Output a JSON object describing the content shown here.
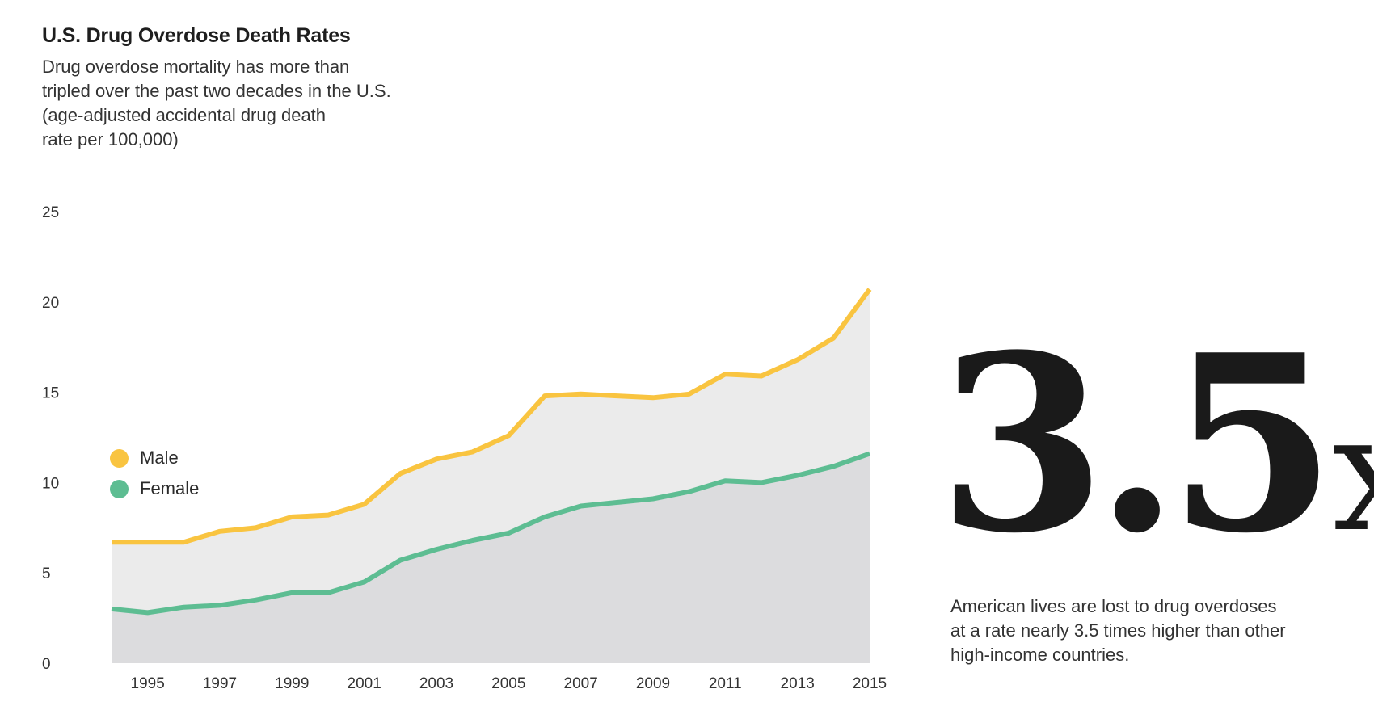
{
  "header": {
    "title": "U.S. Drug Overdose Death Rates",
    "subtitle_lines": [
      "Drug overdose mortality has more than",
      "tripled over the past two decades in the U.S.",
      "(age-adjusted accidental drug death",
      "rate per 100,000)"
    ]
  },
  "callout": {
    "number": "3.5",
    "suffix": "x",
    "note_lines": [
      "American lives are lost to drug overdoses",
      "at a rate nearly 3.5 times higher than other",
      "high-income countries."
    ]
  },
  "colors": {
    "male": "#f9c440",
    "female": "#5dbd92",
    "male_area": "#ebebeb",
    "female_area": "#dcdcde"
  },
  "chart_data": {
    "type": "area",
    "x": [
      1994,
      1995,
      1996,
      1997,
      1998,
      1999,
      2000,
      2001,
      2002,
      2003,
      2004,
      2005,
      2006,
      2007,
      2008,
      2009,
      2010,
      2011,
      2012,
      2013,
      2014,
      2015
    ],
    "x_tick_labels": [
      "1995",
      "1997",
      "1999",
      "2001",
      "2003",
      "2005",
      "2007",
      "2009",
      "2011",
      "2013",
      "2015"
    ],
    "y_ticks": [
      "0",
      "5",
      "10",
      "15",
      "20",
      "25"
    ],
    "ylim": [
      0,
      25
    ],
    "grid": false,
    "legend_position": "left",
    "series": [
      {
        "name": "Male",
        "values": [
          6.7,
          6.7,
          6.7,
          7.3,
          7.5,
          8.1,
          8.2,
          8.8,
          10.5,
          11.3,
          11.7,
          12.6,
          14.8,
          14.9,
          14.8,
          14.7,
          14.9,
          16.0,
          15.9,
          16.8,
          18.0,
          20.7
        ]
      },
      {
        "name": "Female",
        "values": [
          3.0,
          2.8,
          3.1,
          3.2,
          3.5,
          3.9,
          3.9,
          4.5,
          5.7,
          6.3,
          6.8,
          7.2,
          8.1,
          8.7,
          8.9,
          9.1,
          9.5,
          10.1,
          10.0,
          10.4,
          10.9,
          11.6
        ]
      }
    ]
  }
}
